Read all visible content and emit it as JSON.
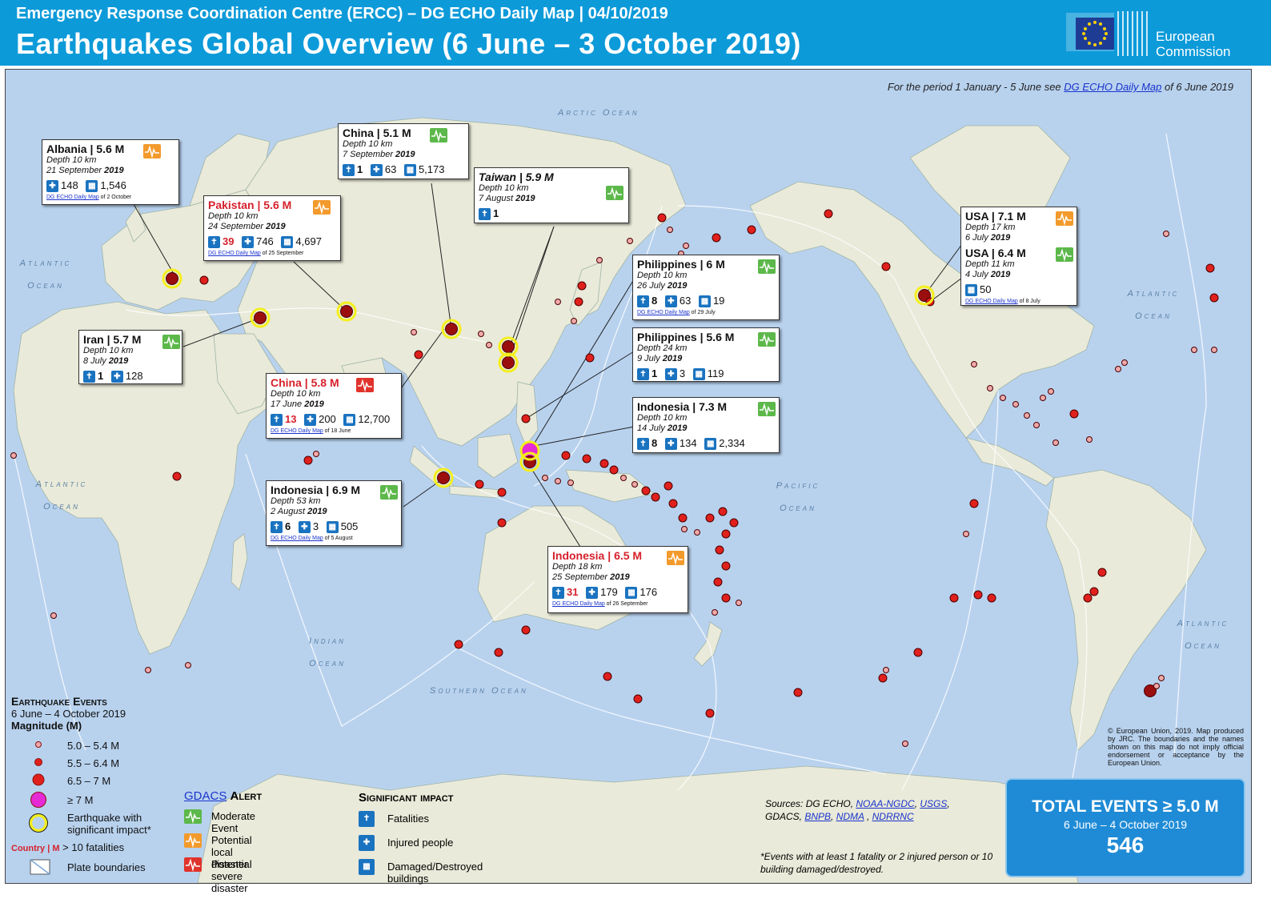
{
  "header": {
    "subtitle": "Emergency Response Coordination Centre (ERCC) – DG ECHO Daily Map | 04/10/2019",
    "title": "Earthquakes Global Overview (6 June – 3 October 2019)",
    "logo_text": "European Commission"
  },
  "period_note": {
    "prefix": "For the period 1 January - 5 June see ",
    "link": "DG ECHO Daily Map",
    "suffix": " of 6 June 2019"
  },
  "oceans": [
    "Arctic Ocean",
    "Atlantic Ocean",
    "Atlantic Ocean",
    "Atlantic Ocean",
    "Atlantic Ocean",
    "Indian Ocean",
    "Pacific Ocean",
    "Southern Ocean"
  ],
  "callouts": [
    {
      "country": "Albania",
      "mag": "5.6 M",
      "depth": "Depth  10 km",
      "date": "21 September",
      "year": "2019",
      "alert": "orange",
      "red": false,
      "italic": false,
      "fatalities": "",
      "injured": "148",
      "buildings": "1,546",
      "link": "DG ECHO Daily Map",
      "link_suffix": " of 2 October"
    },
    {
      "country": "China",
      "mag": "5.1 M",
      "depth": "Depth 10 km",
      "date": "7 September",
      "year": "2019",
      "alert": "green",
      "red": false,
      "italic": false,
      "fatalities": "1",
      "injured": "63",
      "buildings": "5,173",
      "link": "",
      "link_suffix": ""
    },
    {
      "country": "Taiwan",
      "mag": "5.9 M",
      "depth": "Depth 10 km",
      "date": "7 August",
      "year": "2019",
      "alert": "green",
      "red": false,
      "italic": true,
      "fatalities": "1",
      "injured": "",
      "buildings": "",
      "link": "",
      "link_suffix": ""
    },
    {
      "country": "Pakistan",
      "mag": "5.6 M",
      "depth": "Depth 10 km",
      "date": "24 September",
      "year": "2019",
      "alert": "orange",
      "red": true,
      "italic": false,
      "fatalities": "39",
      "injured": "746",
      "buildings": "4,697",
      "link": "DG ECHO Daily Map",
      "link_suffix": " of 25 September"
    },
    {
      "country": "Iran",
      "mag": "5.7 M",
      "depth": "Depth  10 km",
      "date": "8 July",
      "year": "2019",
      "alert": "green",
      "red": false,
      "italic": false,
      "fatalities": "1",
      "injured": "128",
      "buildings": "",
      "link": "",
      "link_suffix": ""
    },
    {
      "country": "China",
      "mag": "5.8 M",
      "depth": "Depth 10 km",
      "date": "17 June",
      "year": "2019",
      "alert": "red",
      "red": true,
      "italic": false,
      "fatalities": "13",
      "injured": "200",
      "buildings": "12,700",
      "link": "DG ECHO Daily Map",
      "link_suffix": " of 18 June"
    },
    {
      "country": "Philippines",
      "mag": "6 M",
      "depth": "Depth 10 km",
      "date": "26 July",
      "year": "2019",
      "alert": "green",
      "red": false,
      "italic": false,
      "fatalities": "8",
      "injured": "63",
      "buildings": "19",
      "link": "DG ECHO Daily Map",
      "link_suffix": " of 29 July"
    },
    {
      "country": "Philippines",
      "mag": "5.6 M",
      "depth": "Depth 24 km",
      "date": "9 July",
      "year": "2019",
      "alert": "green",
      "red": false,
      "italic": false,
      "fatalities": "1",
      "injured": "3",
      "buildings": "119",
      "link": "",
      "link_suffix": ""
    },
    {
      "country": "Indonesia",
      "mag": "7.3 M",
      "depth": "Depth 10 km",
      "date": "14 July",
      "year": "2019",
      "alert": "green",
      "red": false,
      "italic": false,
      "fatalities": "8",
      "injured": "134",
      "buildings": "2,334",
      "link": "",
      "link_suffix": ""
    },
    {
      "country": "Indonesia",
      "mag": "6.9 M",
      "depth": "Depth 53 km",
      "date": "2 August",
      "year": "2019",
      "alert": "green",
      "red": false,
      "italic": false,
      "fatalities": "6",
      "injured": "3",
      "buildings": "505",
      "link": "DG ECHO Daily Map",
      "link_suffix": " of 5 August"
    },
    {
      "country": "Indonesia",
      "mag": "6.5 M",
      "depth": "Depth 18 km",
      "date": "25 September",
      "year": "2019",
      "alert": "orange",
      "red": true,
      "italic": false,
      "fatalities": "31",
      "injured": "179",
      "buildings": "176",
      "link": "DG ECHO Daily Map",
      "link_suffix": " of 26 September"
    }
  ],
  "usa": {
    "a_country": "USA",
    "a_mag": "7.1 M",
    "a_depth": "Depth 17 km",
    "a_date": "6 July",
    "a_year": "2019",
    "b_country": "USA",
    "b_mag": "6.4 M",
    "b_depth": "Depth 11 km",
    "b_date": "4 July",
    "b_year": "2019",
    "buildings": "50",
    "link": "DG ECHO Daily Map",
    "link_suffix": " of 8 July"
  },
  "legend": {
    "title": "Earthquake Events",
    "period": "6 June – 4 October 2019",
    "magnitude_label": "Magnitude (M)",
    "items": [
      "5.0 – 5.4 M",
      "5.5 – 6.4 M",
      "6.5 – 7 M",
      "≥ 7 M",
      "Earthquake with significant impact*"
    ],
    "country_key": "Country | M",
    "country_key_desc": "> 10 fatalities",
    "plate": "Plate boundaries"
  },
  "gdacs": {
    "title_a": "GDACS",
    "title_b": "Alert",
    "items": [
      "Moderate Event",
      "Potential local disaster",
      "Potential severe disaster"
    ]
  },
  "significant": {
    "title": "Significant impact",
    "items": [
      "Fatalities",
      "Injured  people",
      "Damaged/Destroyed  buildings"
    ]
  },
  "sources": {
    "prefix": "Sources: DG ECHO, ",
    "links": [
      "NOAA-NGDC",
      "USGS",
      "BNPB",
      "NDMA",
      "NDRRNC"
    ],
    "gdacs": "GDACS,"
  },
  "definition": "*Events with at least 1 fatality or 2 injured person or 10 building  damaged/destroyed.",
  "copyright": "© European Union, 2019. Map produced by JRC. The boundaries and the names shown on this map do not imply official endorsement or acceptance by the European Union.",
  "total": {
    "title": "TOTAL EVENTS ≥ 5.0 M",
    "period": "6 June – 4 October 2019",
    "count": "546"
  },
  "colors": {
    "header": "#0c9ad9",
    "ocean": "#b8d2ee",
    "land": "#e9ead9",
    "event": "#e0201c",
    "big": "#e62ad6",
    "ring": "#f4ef1c",
    "total": "#1f8bd6"
  }
}
